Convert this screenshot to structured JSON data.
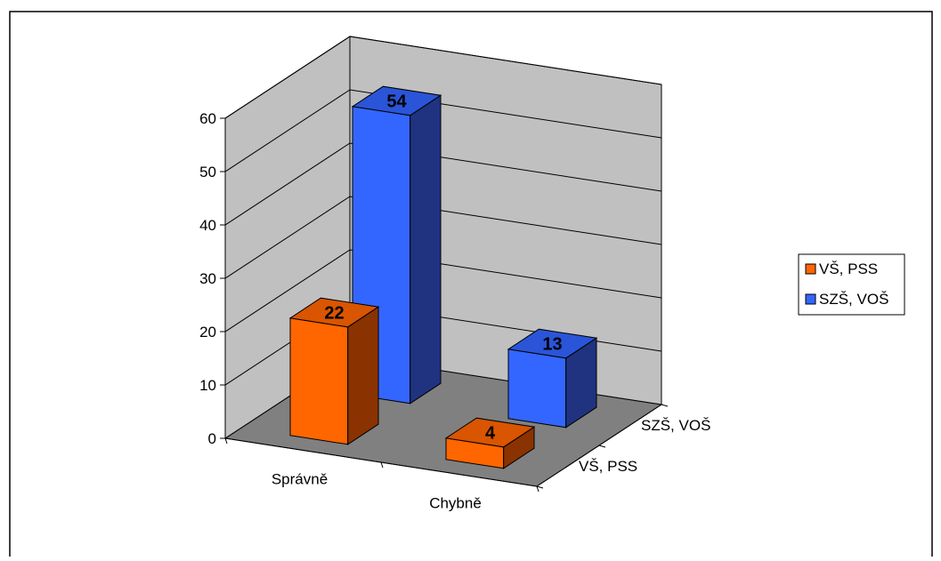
{
  "chart_data": {
    "type": "bar",
    "subtype": "3d-clustered-depth",
    "title": "",
    "xlabel": "",
    "ylabel": "",
    "categories": [
      "Správně",
      "Chybně"
    ],
    "series": [
      {
        "name": "VŠ, PSS",
        "values": [
          22,
          4
        ],
        "color": "#ff6600",
        "top_color": "#d95500",
        "side_color": "#8a3300"
      },
      {
        "name": "SZŠ, VOŠ",
        "values": [
          54,
          13
        ],
        "color": "#3366ff",
        "top_color": "#2a55d8",
        "side_color": "#1f3380"
      }
    ],
    "depth_labels": [
      "VŠ, PSS",
      "SZŠ, VOŠ"
    ],
    "y_ticks": [
      "0",
      "10",
      "20",
      "30",
      "40",
      "50",
      "60"
    ],
    "ylim": [
      0,
      60
    ],
    "data_labels": true,
    "grid": true,
    "legend": "right",
    "walls_color": "#c0c0c0",
    "floor_color": "#808080"
  }
}
